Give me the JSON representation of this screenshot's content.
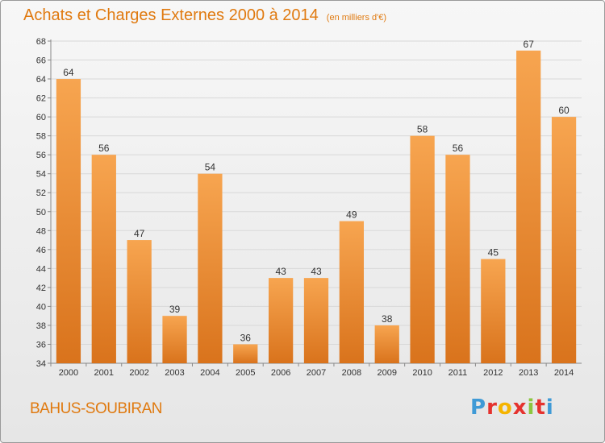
{
  "title": "Achats et Charges Externes 2000 à 2014",
  "unit": "(en milliers d'€)",
  "commune": "BAHUS-SOUBIRAN",
  "logo": {
    "letters": [
      "P",
      "r",
      "o",
      "x",
      "i",
      "t",
      "i"
    ],
    "colors": [
      "#3f9ad6",
      "#e5322e",
      "#f5b400",
      "#e5322e",
      "#8cc63f",
      "#e5322e",
      "#3f9ad6"
    ]
  },
  "colors": {
    "title": "#e07a10",
    "bar_light": "#f7a550",
    "bar_dark": "#d9731c",
    "grid": "#d8d8d8",
    "label": "#333333"
  },
  "chart_data": {
    "type": "bar",
    "title": "Achats et Charges Externes 2000 à 2014",
    "xlabel": "",
    "ylabel": "",
    "categories": [
      "2000",
      "2001",
      "2002",
      "2003",
      "2004",
      "2005",
      "2006",
      "2007",
      "2008",
      "2009",
      "2010",
      "2011",
      "2012",
      "2013",
      "2014"
    ],
    "values": [
      64,
      56,
      47,
      39,
      54,
      36,
      43,
      43,
      49,
      38,
      58,
      56,
      45,
      67,
      60
    ],
    "ylim": [
      34,
      68
    ],
    "yticks": [
      34,
      36,
      38,
      40,
      42,
      44,
      46,
      48,
      50,
      52,
      54,
      56,
      58,
      60,
      62,
      64,
      66,
      68
    ],
    "grid": true,
    "legend": "none"
  }
}
